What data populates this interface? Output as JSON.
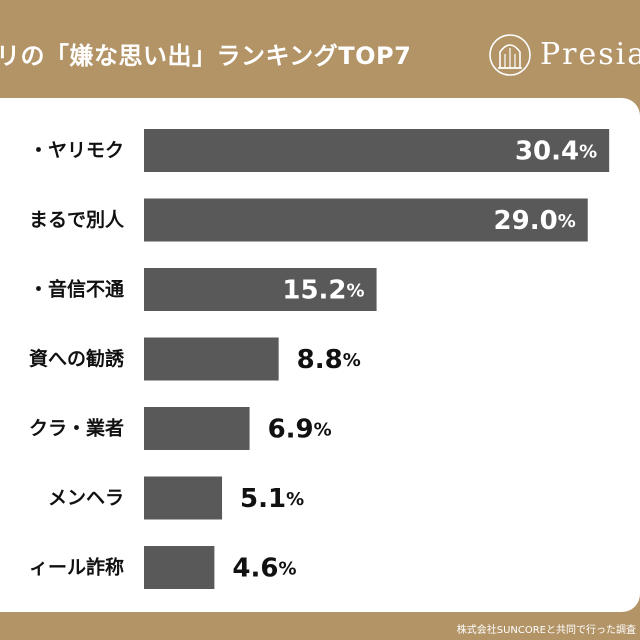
{
  "header": {
    "title": "リの「嫌な思い出」ランキングTOP7",
    "logo_text": "Presia"
  },
  "footer": {
    "source": "株式会社SUNCOREと共同で行った調査"
  },
  "colors": {
    "background": "#b39467",
    "bar": "#595959",
    "label_inside": "#ffffff",
    "label_outside": "#111111"
  },
  "chart_data": {
    "type": "bar",
    "orientation": "horizontal",
    "categories": [
      "・ヤリモク",
      "まるで別人",
      "・音信不通",
      "資への勧誘",
      "クラ・業者",
      "メンヘラ",
      "ィール詐称"
    ],
    "values": [
      30.4,
      29.0,
      15.2,
      8.8,
      6.9,
      5.1,
      4.6
    ],
    "value_labels": [
      "30.4",
      "29.0",
      "15.2",
      "8.8",
      "6.9",
      "5.1",
      "4.6"
    ],
    "unit": "%",
    "xlim": [
      0,
      31.5
    ],
    "grid": false,
    "legend": "none"
  }
}
